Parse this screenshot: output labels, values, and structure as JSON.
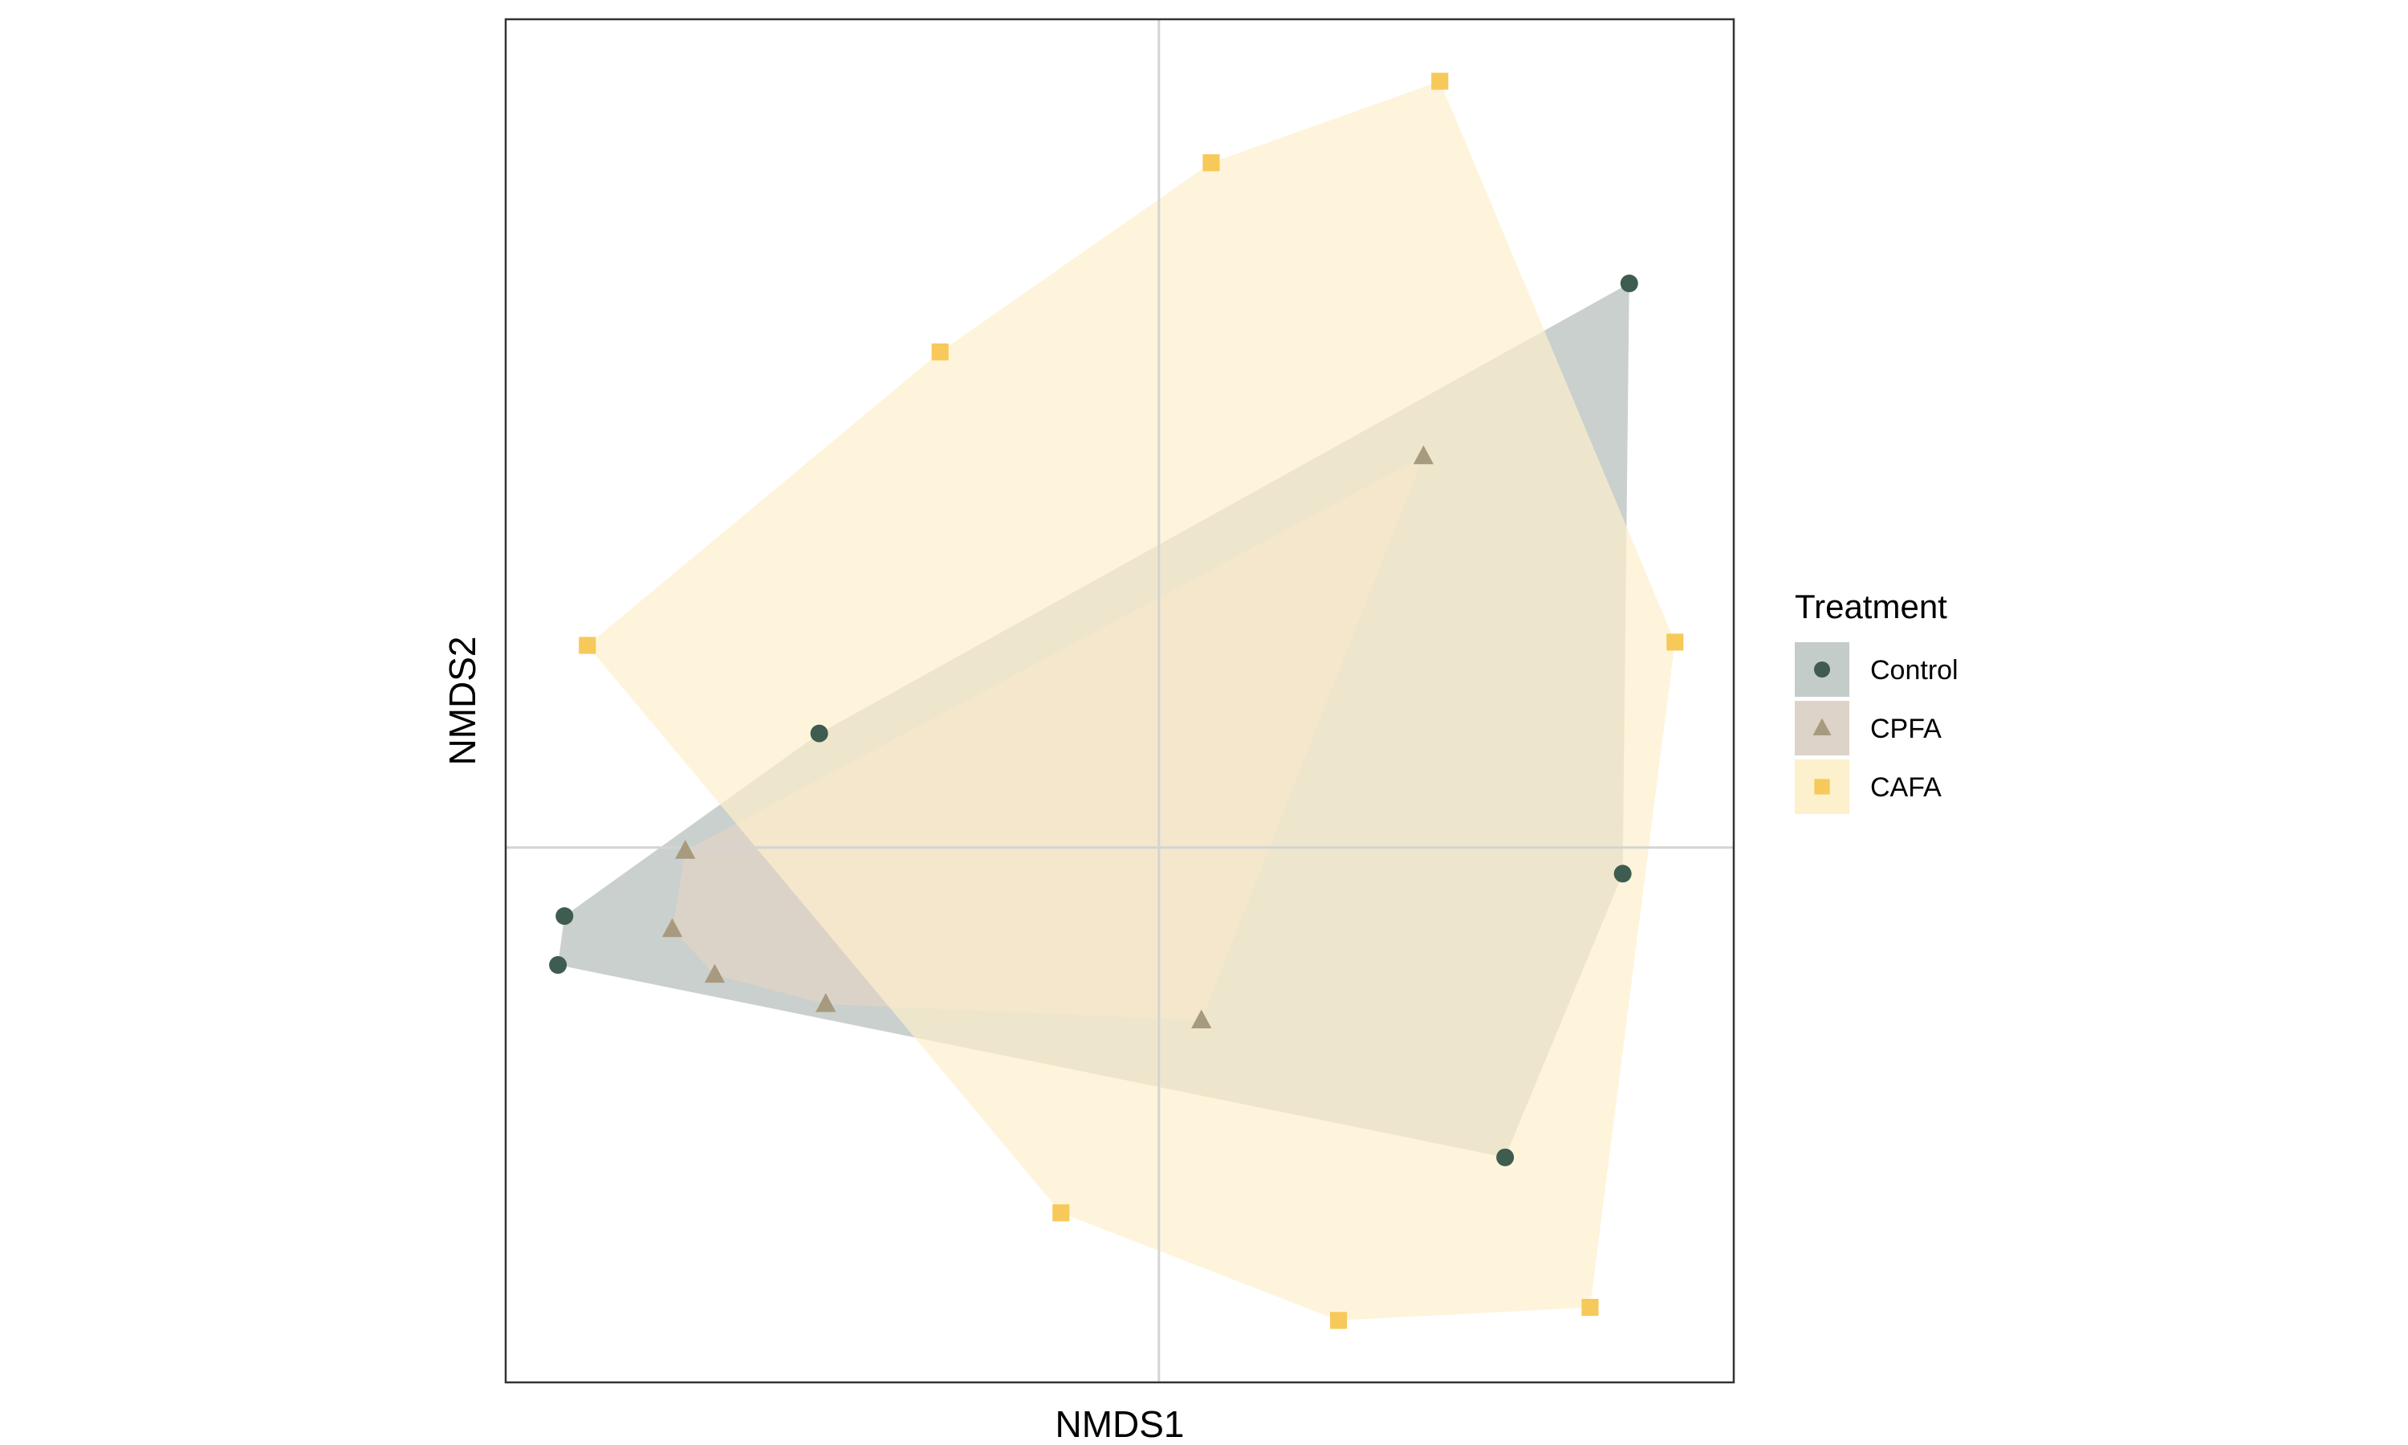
{
  "chart_data": {
    "type": "scatter",
    "xlabel": "NMDS1",
    "ylabel": "NMDS2",
    "xlim": [
      -1.0,
      0.88
    ],
    "ylim": [
      -0.82,
      1.27
    ],
    "grid": false,
    "reference_lines": {
      "x": 0,
      "y": 0
    },
    "legend": {
      "title": "Treatment",
      "position": "right"
    },
    "series": [
      {
        "name": "Control",
        "marker": "circle",
        "point_color": "#3e5c4f",
        "hull_color": "#c4ccc9",
        "points": [
          {
            "x": 0.72,
            "y": 0.865
          },
          {
            "x": -0.52,
            "y": 0.175
          },
          {
            "x": -0.91,
            "y": -0.105
          },
          {
            "x": -0.92,
            "y": -0.18
          },
          {
            "x": 0.71,
            "y": -0.04
          },
          {
            "x": 0.53,
            "y": -0.475
          }
        ]
      },
      {
        "name": "CPFA",
        "marker": "triangle",
        "point_color": "#a89a7e",
        "hull_color": "#ddd3c8",
        "points": [
          {
            "x": 0.405,
            "y": 0.6
          },
          {
            "x": -0.725,
            "y": -0.005
          },
          {
            "x": -0.745,
            "y": -0.125
          },
          {
            "x": -0.68,
            "y": -0.195
          },
          {
            "x": -0.51,
            "y": -0.24
          },
          {
            "x": 0.065,
            "y": -0.265
          }
        ]
      },
      {
        "name": "CAFA",
        "marker": "square",
        "point_color": "#f7c95a",
        "hull_color": "#fdf0cc",
        "points": [
          {
            "x": 0.43,
            "y": 1.175
          },
          {
            "x": 0.08,
            "y": 1.05
          },
          {
            "x": -0.335,
            "y": 0.76
          },
          {
            "x": -0.875,
            "y": 0.31
          },
          {
            "x": 0.79,
            "y": 0.315
          },
          {
            "x": -0.15,
            "y": -0.56
          },
          {
            "x": 0.275,
            "y": -0.725
          },
          {
            "x": 0.66,
            "y": -0.705
          }
        ]
      }
    ]
  }
}
